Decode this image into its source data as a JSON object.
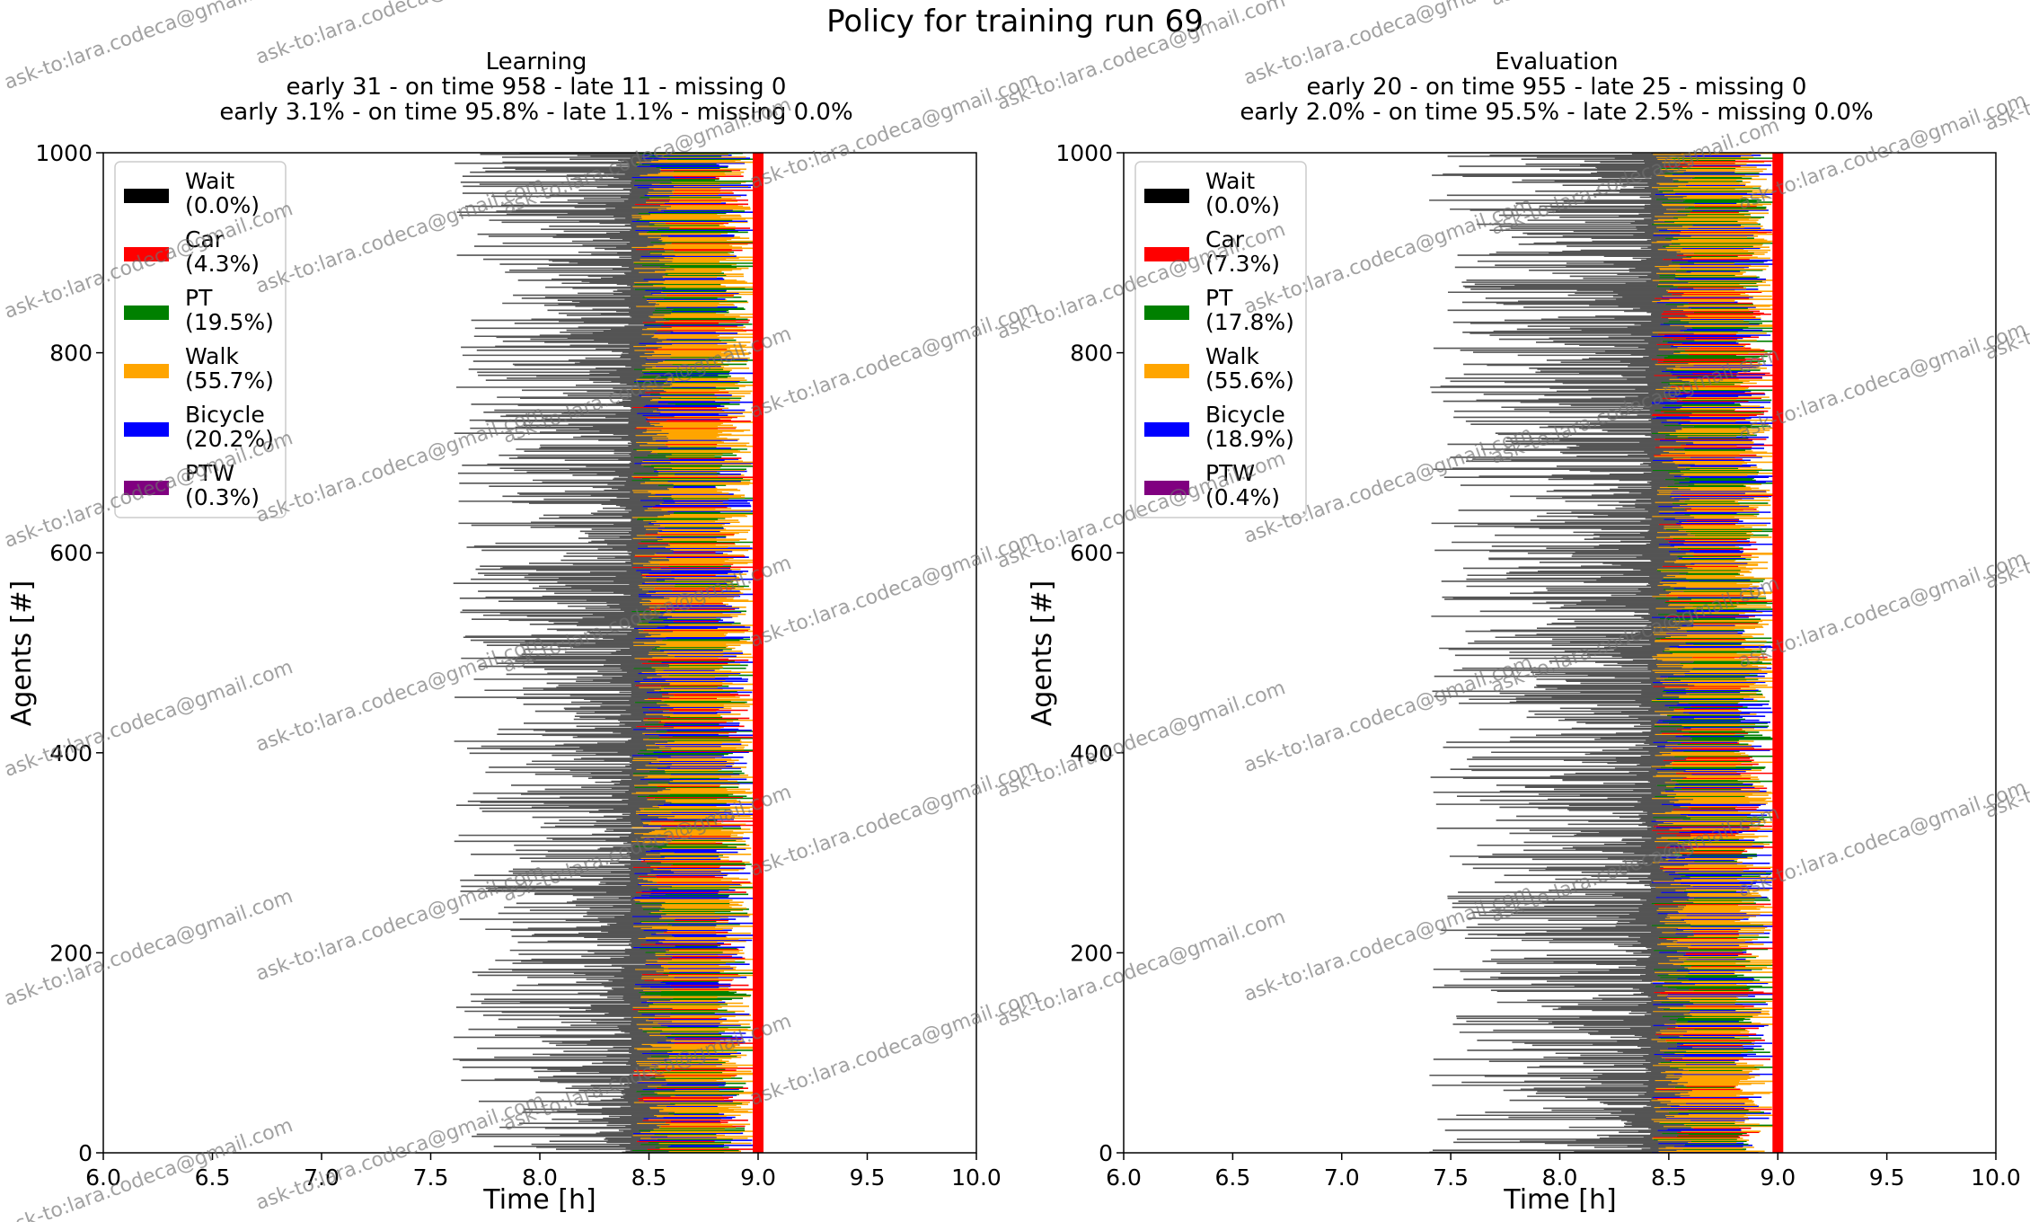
{
  "suptitle": "Policy for training run 69",
  "watermark": "ask-to:lara.codeca@gmail.com",
  "colors": {
    "Wait": "#000000",
    "Car": "#ff0000",
    "PT": "#008000",
    "Walk": "#ffa500",
    "Bicycle": "#0000ff",
    "PTW": "#800080",
    "deadline": "#ff0000"
  },
  "chart_data": [
    {
      "type": "bar",
      "subtype": "horizontal-gantt",
      "title": "Learning",
      "subtitle_1": "early 31 - on time 958 - late 11 - missing 0",
      "subtitle_2": "early 3.1% - on time 95.8% - late 1.1% - missing 0.0%",
      "xlabel": "Time [h]",
      "ylabel": "Agents [#]",
      "xlim": [
        6.0,
        10.0
      ],
      "ylim": [
        0,
        1000
      ],
      "xticks": [
        "6.0",
        "6.5",
        "7.0",
        "7.5",
        "8.0",
        "8.5",
        "9.0",
        "9.5",
        "10.0"
      ],
      "yticks": [
        "0",
        "200",
        "400",
        "600",
        "800",
        "1000"
      ],
      "deadline_x": 9.0,
      "legend_placement": "upper-left",
      "legend": [
        {
          "mode": "Wait",
          "share": "(0.0%)"
        },
        {
          "mode": "Car",
          "share": "(4.3%)"
        },
        {
          "mode": "PT",
          "share": "(19.5%)"
        },
        {
          "mode": "Walk",
          "share": "(55.7%)"
        },
        {
          "mode": "Bicycle",
          "share": "(20.2%)"
        },
        {
          "mode": "PTW",
          "share": "(0.3%)"
        }
      ],
      "agents": 1000,
      "typical_start_range": [
        7.6,
        8.55
      ],
      "departure_range": [
        8.42,
        8.62
      ],
      "arrival_range": [
        8.8,
        9.0
      ]
    },
    {
      "type": "bar",
      "subtype": "horizontal-gantt",
      "title": "Evaluation",
      "subtitle_1": "early 20 - on time 955 - late 25 - missing 0",
      "subtitle_2": "early 2.0% - on time 95.5% - late 2.5% - missing 0.0%",
      "xlabel": "Time [h]",
      "ylabel": "Agents [#]",
      "xlim": [
        6.0,
        10.0
      ],
      "ylim": [
        0,
        1000
      ],
      "xticks": [
        "6.0",
        "6.5",
        "7.0",
        "7.5",
        "8.0",
        "8.5",
        "9.0",
        "9.5",
        "10.0"
      ],
      "yticks": [
        "0",
        "200",
        "400",
        "600",
        "800",
        "1000"
      ],
      "deadline_x": 9.0,
      "legend_placement": "upper-left",
      "legend": [
        {
          "mode": "Wait",
          "share": "(0.0%)"
        },
        {
          "mode": "Car",
          "share": "(7.3%)"
        },
        {
          "mode": "PT",
          "share": "(17.8%)"
        },
        {
          "mode": "Walk",
          "share": "(55.6%)"
        },
        {
          "mode": "Bicycle",
          "share": "(18.9%)"
        },
        {
          "mode": "PTW",
          "share": "(0.4%)"
        }
      ],
      "agents": 1000,
      "typical_start_range": [
        7.4,
        8.55
      ],
      "departure_range": [
        8.42,
        8.62
      ],
      "arrival_range": [
        8.8,
        9.0
      ]
    }
  ]
}
